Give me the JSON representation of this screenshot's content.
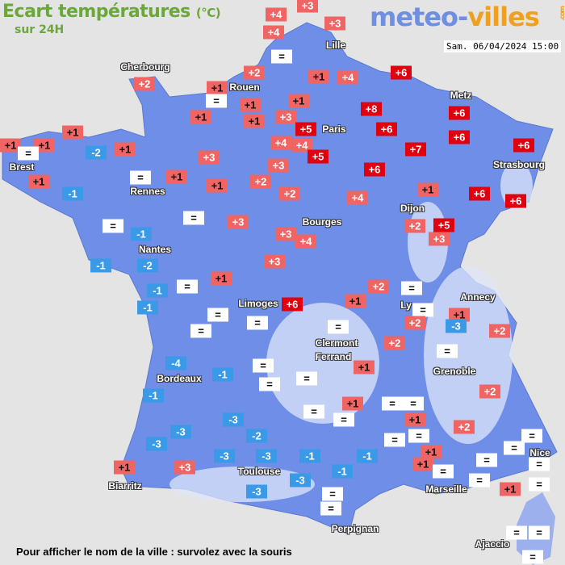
{
  "header": {
    "title": "Ecart températures",
    "unit": "(°C)",
    "subtitle": "sur 24H",
    "logo_part1": "meteo-",
    "logo_part2": "villes",
    "logo_suffix": ".com",
    "datetime": "Sam. 06/04/2024 15:00"
  },
  "colors": {
    "positive": "#f06464",
    "strong_positive": "#e0000e",
    "negative": "#3a9ae8",
    "equal": "#ffffff",
    "land": "#6e8ee8",
    "background": "#e4e4e4"
  },
  "cities": [
    "Cherbourg",
    "Lille",
    "Rouen",
    "Paris",
    "Metz",
    "Brest",
    "Rennes",
    "Strasbourg",
    "Dijon",
    "Bourges",
    "Nantes",
    "Annecy",
    "Limoges",
    "Ly",
    "Clermont",
    "Ferrand",
    "Grenoble",
    "Bordeaux",
    "Toulouse",
    "Nice",
    "Biarritz",
    "Marseille",
    "Perpignan",
    "Ajaccio"
  ],
  "labels": [
    "+4",
    "+3",
    "+4",
    "+3",
    "=",
    "+2",
    "+1",
    "+4",
    "+6",
    "+2",
    "+1",
    "=",
    "+1",
    "+1",
    "+1",
    "+1",
    "+3",
    "+8",
    "+6",
    "+5",
    "+6",
    "+6",
    "+1",
    "+1",
    "+1",
    "=",
    "-2",
    "+1",
    "+4",
    "+4",
    "+7",
    "+6",
    "+5",
    "+3",
    "+3",
    "+6",
    "+1",
    "=",
    "+1",
    "+1",
    "+2",
    "-1",
    "+2",
    "+4",
    "+1",
    "+6",
    "+6",
    "=",
    "+3",
    "=",
    "-1",
    "+5",
    "+2",
    "+3",
    "+3",
    "+4",
    "-1",
    "-2",
    "+3",
    "+1",
    "=",
    "-1",
    "-1",
    "+6",
    "+2",
    "=",
    "+1",
    "=",
    "+1",
    "=",
    "=",
    "=",
    "+2",
    "-3",
    "+2",
    "=",
    "+2",
    "=",
    "-4",
    "=",
    "+1",
    "-1",
    "=",
    "=",
    "-1",
    "+2",
    "+1",
    "=",
    "=",
    "=",
    "=",
    "-3",
    "+1",
    "+2",
    "-3",
    "-2",
    "=",
    "=",
    "=",
    "-3",
    "=",
    "+1",
    "-3",
    "-3",
    "-1",
    "-1",
    "+1",
    "=",
    "=",
    "+1",
    "+3",
    "-1",
    "=",
    "=",
    "=",
    "-3",
    "+1",
    "-3",
    "=",
    "=",
    "=",
    "=",
    "="
  ],
  "footer": "Pour afficher le nom de la ville : survolez avec la souris"
}
